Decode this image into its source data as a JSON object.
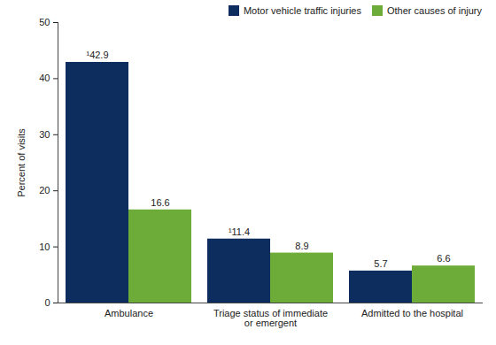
{
  "chart_data": {
    "type": "bar",
    "categories": [
      "Ambulance",
      "Triage status of immediate or emergent",
      "Admitted to the hospital"
    ],
    "series": [
      {
        "name": "Motor vehicle traffic injuries",
        "color": "#0c2d5e",
        "values": [
          42.9,
          11.4,
          5.7
        ],
        "value_labels": [
          "¹42.9",
          "¹11.4",
          "5.7"
        ]
      },
      {
        "name": "Other causes of injury",
        "color": "#6eac3a",
        "values": [
          16.6,
          8.9,
          6.6
        ]
      }
    ],
    "y_label": "Percent of visits",
    "ylim": [
      0,
      50
    ],
    "yticks": [
      0,
      10,
      20,
      30,
      40,
      50
    ],
    "grid": false,
    "legend": "top-right",
    "data_labels": true
  }
}
